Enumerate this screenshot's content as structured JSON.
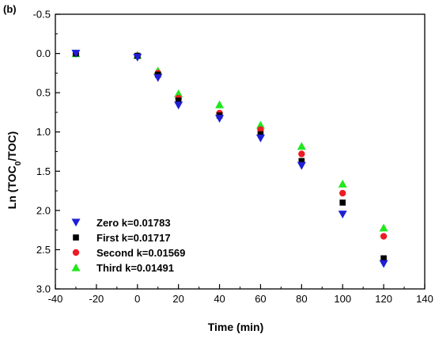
{
  "panel_label": "(b)",
  "chart_data": {
    "type": "scatter",
    "xlabel": "Time (min)",
    "ylabel_parts": [
      "Ln (TOC",
      "0",
      "/TOC)"
    ],
    "xlim": [
      -40,
      140
    ],
    "ylim": [
      -0.5,
      3.0
    ],
    "y_inverted": true,
    "x_ticks": [
      -40,
      -20,
      0,
      20,
      40,
      60,
      80,
      100,
      120,
      140
    ],
    "y_ticks": [
      -0.5,
      0.0,
      0.5,
      1.0,
      1.5,
      2.0,
      2.5,
      3.0
    ],
    "y_tick_labels": [
      "-0.5",
      "0.0",
      "0.5",
      "1.0",
      "1.5",
      "2.0",
      "2.5",
      "3.0"
    ],
    "x_tick_labels": [
      "-40",
      "-20",
      "0",
      "20",
      "40",
      "60",
      "80",
      "100",
      "120",
      "140"
    ],
    "grid": false,
    "legend_position": "bottom-left",
    "series": [
      {
        "name": "Zero k=0.01783",
        "marker": "triangle-down",
        "color": "#1f1fd6",
        "points": [
          [
            -30,
            0.0
          ],
          [
            0,
            0.05
          ],
          [
            10,
            0.31
          ],
          [
            20,
            0.66
          ],
          [
            40,
            0.83
          ],
          [
            60,
            1.08
          ],
          [
            80,
            1.43
          ],
          [
            100,
            2.05
          ],
          [
            120,
            2.68
          ]
        ]
      },
      {
        "name": "First k=0.01717",
        "marker": "square",
        "color": "#000000",
        "points": [
          [
            -30,
            0.0
          ],
          [
            0,
            0.03
          ],
          [
            10,
            0.27
          ],
          [
            20,
            0.6
          ],
          [
            40,
            0.79
          ],
          [
            60,
            1.03
          ],
          [
            80,
            1.37
          ],
          [
            100,
            1.9
          ],
          [
            120,
            2.61
          ]
        ]
      },
      {
        "name": "Second k=0.01569",
        "marker": "circle",
        "color": "#ec1c24",
        "points": [
          [
            -30,
            0.0
          ],
          [
            0,
            0.03
          ],
          [
            10,
            0.25
          ],
          [
            20,
            0.57
          ],
          [
            40,
            0.76
          ],
          [
            60,
            0.97
          ],
          [
            80,
            1.28
          ],
          [
            100,
            1.78
          ],
          [
            120,
            2.33
          ]
        ]
      },
      {
        "name": "Third k=0.01491",
        "marker": "triangle-up",
        "color": "#22e61e",
        "points": [
          [
            -30,
            0.0
          ],
          [
            0,
            0.02
          ],
          [
            10,
            0.22
          ],
          [
            20,
            0.51
          ],
          [
            40,
            0.65
          ],
          [
            60,
            0.91
          ],
          [
            80,
            1.18
          ],
          [
            100,
            1.66
          ],
          [
            120,
            2.22
          ]
        ]
      }
    ]
  }
}
